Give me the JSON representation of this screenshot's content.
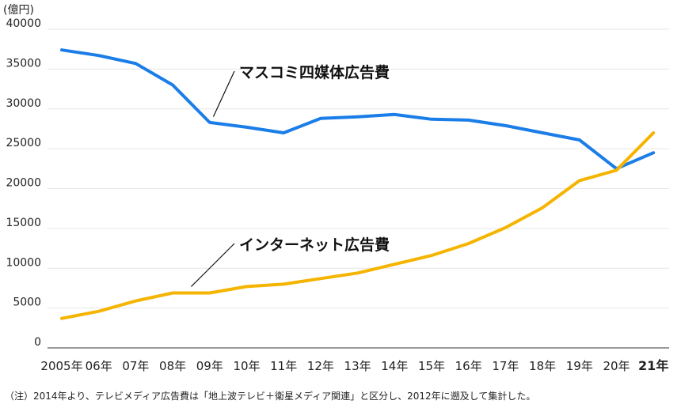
{
  "chart_data": {
    "type": "line",
    "unit_label": "(億円)",
    "categories": [
      "2005年",
      "06年",
      "07年",
      "08年",
      "09年",
      "10年",
      "11年",
      "12年",
      "13年",
      "14年",
      "15年",
      "16年",
      "17年",
      "18年",
      "19年",
      "20年",
      "21年"
    ],
    "highlight_category_index": 16,
    "highlight_color": "#e8193c",
    "ylim": [
      0,
      40000
    ],
    "yticks": [
      "0",
      "5000",
      "10000",
      "15000",
      "20000",
      "25000",
      "30000",
      "35000",
      "40000"
    ],
    "ytick_values": [
      0,
      5000,
      10000,
      15000,
      20000,
      25000,
      30000,
      35000,
      40000
    ],
    "grid": true,
    "series": [
      {
        "name": "マスコミ四媒体広告費",
        "color": "#1a7de8",
        "values": [
          37400,
          36700,
          35700,
          33000,
          28300,
          27700,
          27000,
          28800,
          29000,
          29300,
          28700,
          28600,
          27900,
          27000,
          26100,
          22500,
          24500
        ],
        "label_anchor_index": 4.1
      },
      {
        "name": "インターネット広告費",
        "color": "#f5b400",
        "values": [
          3700,
          4600,
          5900,
          6900,
          6900,
          7700,
          8000,
          8700,
          9400,
          10500,
          11600,
          13100,
          15100,
          17600,
          21000,
          22300,
          27000
        ],
        "label_anchor_index": 3.5
      }
    ]
  },
  "note": "（注）2014年より、テレビメディア広告費は「地上波テレビ＋衛星メディア関連」と区分し、2012年に遡及して集計した。"
}
